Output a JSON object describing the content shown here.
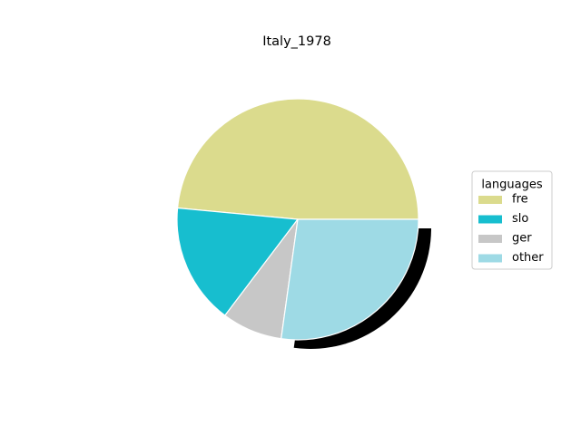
{
  "chart_data": {
    "type": "pie",
    "title": "Italy_1978",
    "legend": {
      "title": "languages",
      "placement": "right"
    },
    "slices": [
      {
        "label": "fre",
        "value": 48.5,
        "color": "#dbdb8d"
      },
      {
        "label": "slo",
        "value": 16.2,
        "color": "#17becf"
      },
      {
        "label": "ger",
        "value": 8.1,
        "color": "#c7c7c7"
      },
      {
        "label": "other",
        "value": 27.2,
        "color": "#9edae5"
      }
    ],
    "start_angle_deg": 0,
    "direction": "counterclockwise",
    "shadow": {
      "slice": "other",
      "color": "#000000"
    }
  }
}
